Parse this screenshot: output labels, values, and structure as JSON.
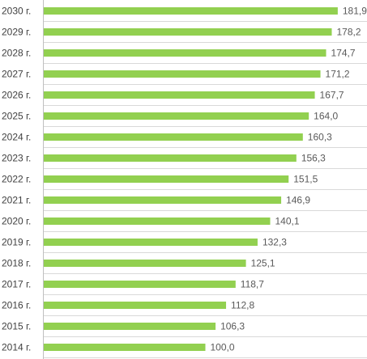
{
  "chart_data": {
    "type": "bar",
    "orientation": "horizontal",
    "categories": [
      "2014 г.",
      "2015 г.",
      "2016 г.",
      "2017 г.",
      "2018 г.",
      "2019 г.",
      "2020 г.",
      "2021 г.",
      "2022 г.",
      "2023 г.",
      "2024 г.",
      "2025 г.",
      "2026 г.",
      "2027 г.",
      "2028 г.",
      "2029 г.",
      "2030 г."
    ],
    "values": [
      100.0,
      106.3,
      112.8,
      118.7,
      125.1,
      132.3,
      140.1,
      146.9,
      151.5,
      156.3,
      160.3,
      164.0,
      167.7,
      171.2,
      174.7,
      178.2,
      181.9
    ],
    "value_labels": [
      "100,0",
      "106,3",
      "112,8",
      "118,7",
      "125,1",
      "132,3",
      "140,1",
      "146,9",
      "151,5",
      "156,3",
      "160,3",
      "164,0",
      "167,7",
      "171,2",
      "174,7",
      "178,2",
      "181,9"
    ],
    "category_order": "bottom-to-top",
    "title": "",
    "xlabel": "",
    "ylabel": "",
    "xlim": [
      0,
      200
    ],
    "grid": true,
    "legend": "none",
    "bar_color": "#92d050"
  }
}
